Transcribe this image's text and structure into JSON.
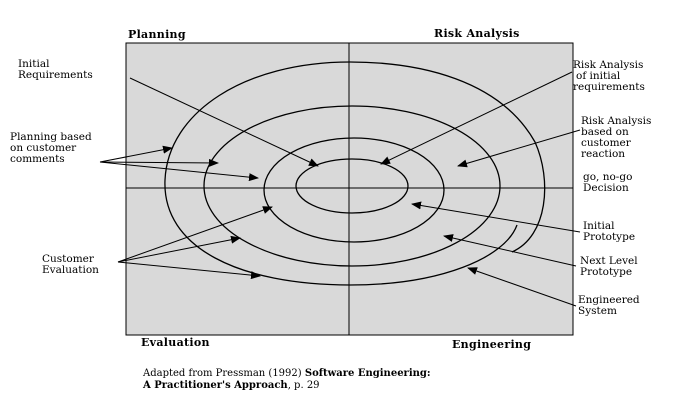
{
  "quadrants": {
    "planning": "Planning",
    "risk_analysis": "Risk Analysis",
    "evaluation": "Evaluation",
    "engineering": "Engineering"
  },
  "labels": {
    "initial_requirements": [
      "Initial",
      "Requirements"
    ],
    "planning_based": [
      "Planning based",
      "on customer",
      "comments"
    ],
    "customer_evaluation": [
      "Customer",
      "Evaluation"
    ],
    "risk_initial": [
      "Risk Analysis",
      "of initial",
      "requirements"
    ],
    "risk_reaction": [
      "Risk Analysis",
      "based on",
      "customer",
      "reaction"
    ],
    "go_no_go": [
      "go, no-go",
      "Decision"
    ],
    "initial_prototype": [
      "Initial",
      "Prototype"
    ],
    "next_level": [
      "Next Level",
      "Prototype"
    ],
    "engineered_system": [
      "Engineered",
      "System"
    ]
  },
  "caption": {
    "line1_plain": "Adapted from Pressman (1992) ",
    "line1_bold": "Software Engineering:",
    "line2_bold": "A Practitioner's Approach",
    "line2_plain": ", p. 29"
  },
  "colors": {
    "panel": "#d9d9d9",
    "line": "#000000",
    "background": "#ffffff"
  }
}
